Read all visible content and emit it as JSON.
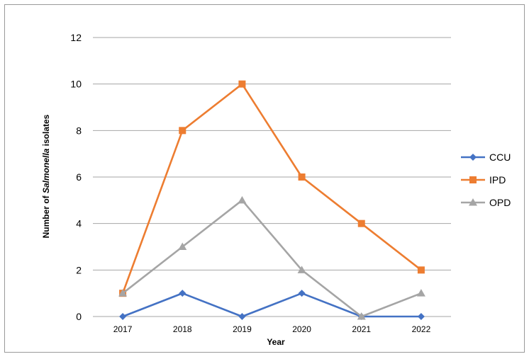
{
  "chart_data": {
    "type": "line",
    "categories": [
      "2017",
      "2018",
      "2019",
      "2020",
      "2021",
      "2022"
    ],
    "series": [
      {
        "name": "CCU",
        "values": [
          0,
          1,
          0,
          1,
          0,
          0
        ],
        "color": "#4472c4",
        "marker": "diamond"
      },
      {
        "name": "IPD",
        "values": [
          1,
          8,
          10,
          6,
          4,
          2
        ],
        "color": "#ed7d31",
        "marker": "square"
      },
      {
        "name": "OPD",
        "values": [
          1,
          3,
          5,
          2,
          0,
          1
        ],
        "color": "#a5a5a5",
        "marker": "triangle"
      }
    ],
    "xlabel": "Year",
    "ylabel": {
      "prefix": "Number of ",
      "italic": "Salmonella",
      "suffix": " isolates"
    },
    "ylim": [
      0,
      12
    ],
    "yticks": [
      0,
      2,
      4,
      6,
      8,
      10,
      12
    ],
    "grid": true,
    "legend_position": "right"
  }
}
